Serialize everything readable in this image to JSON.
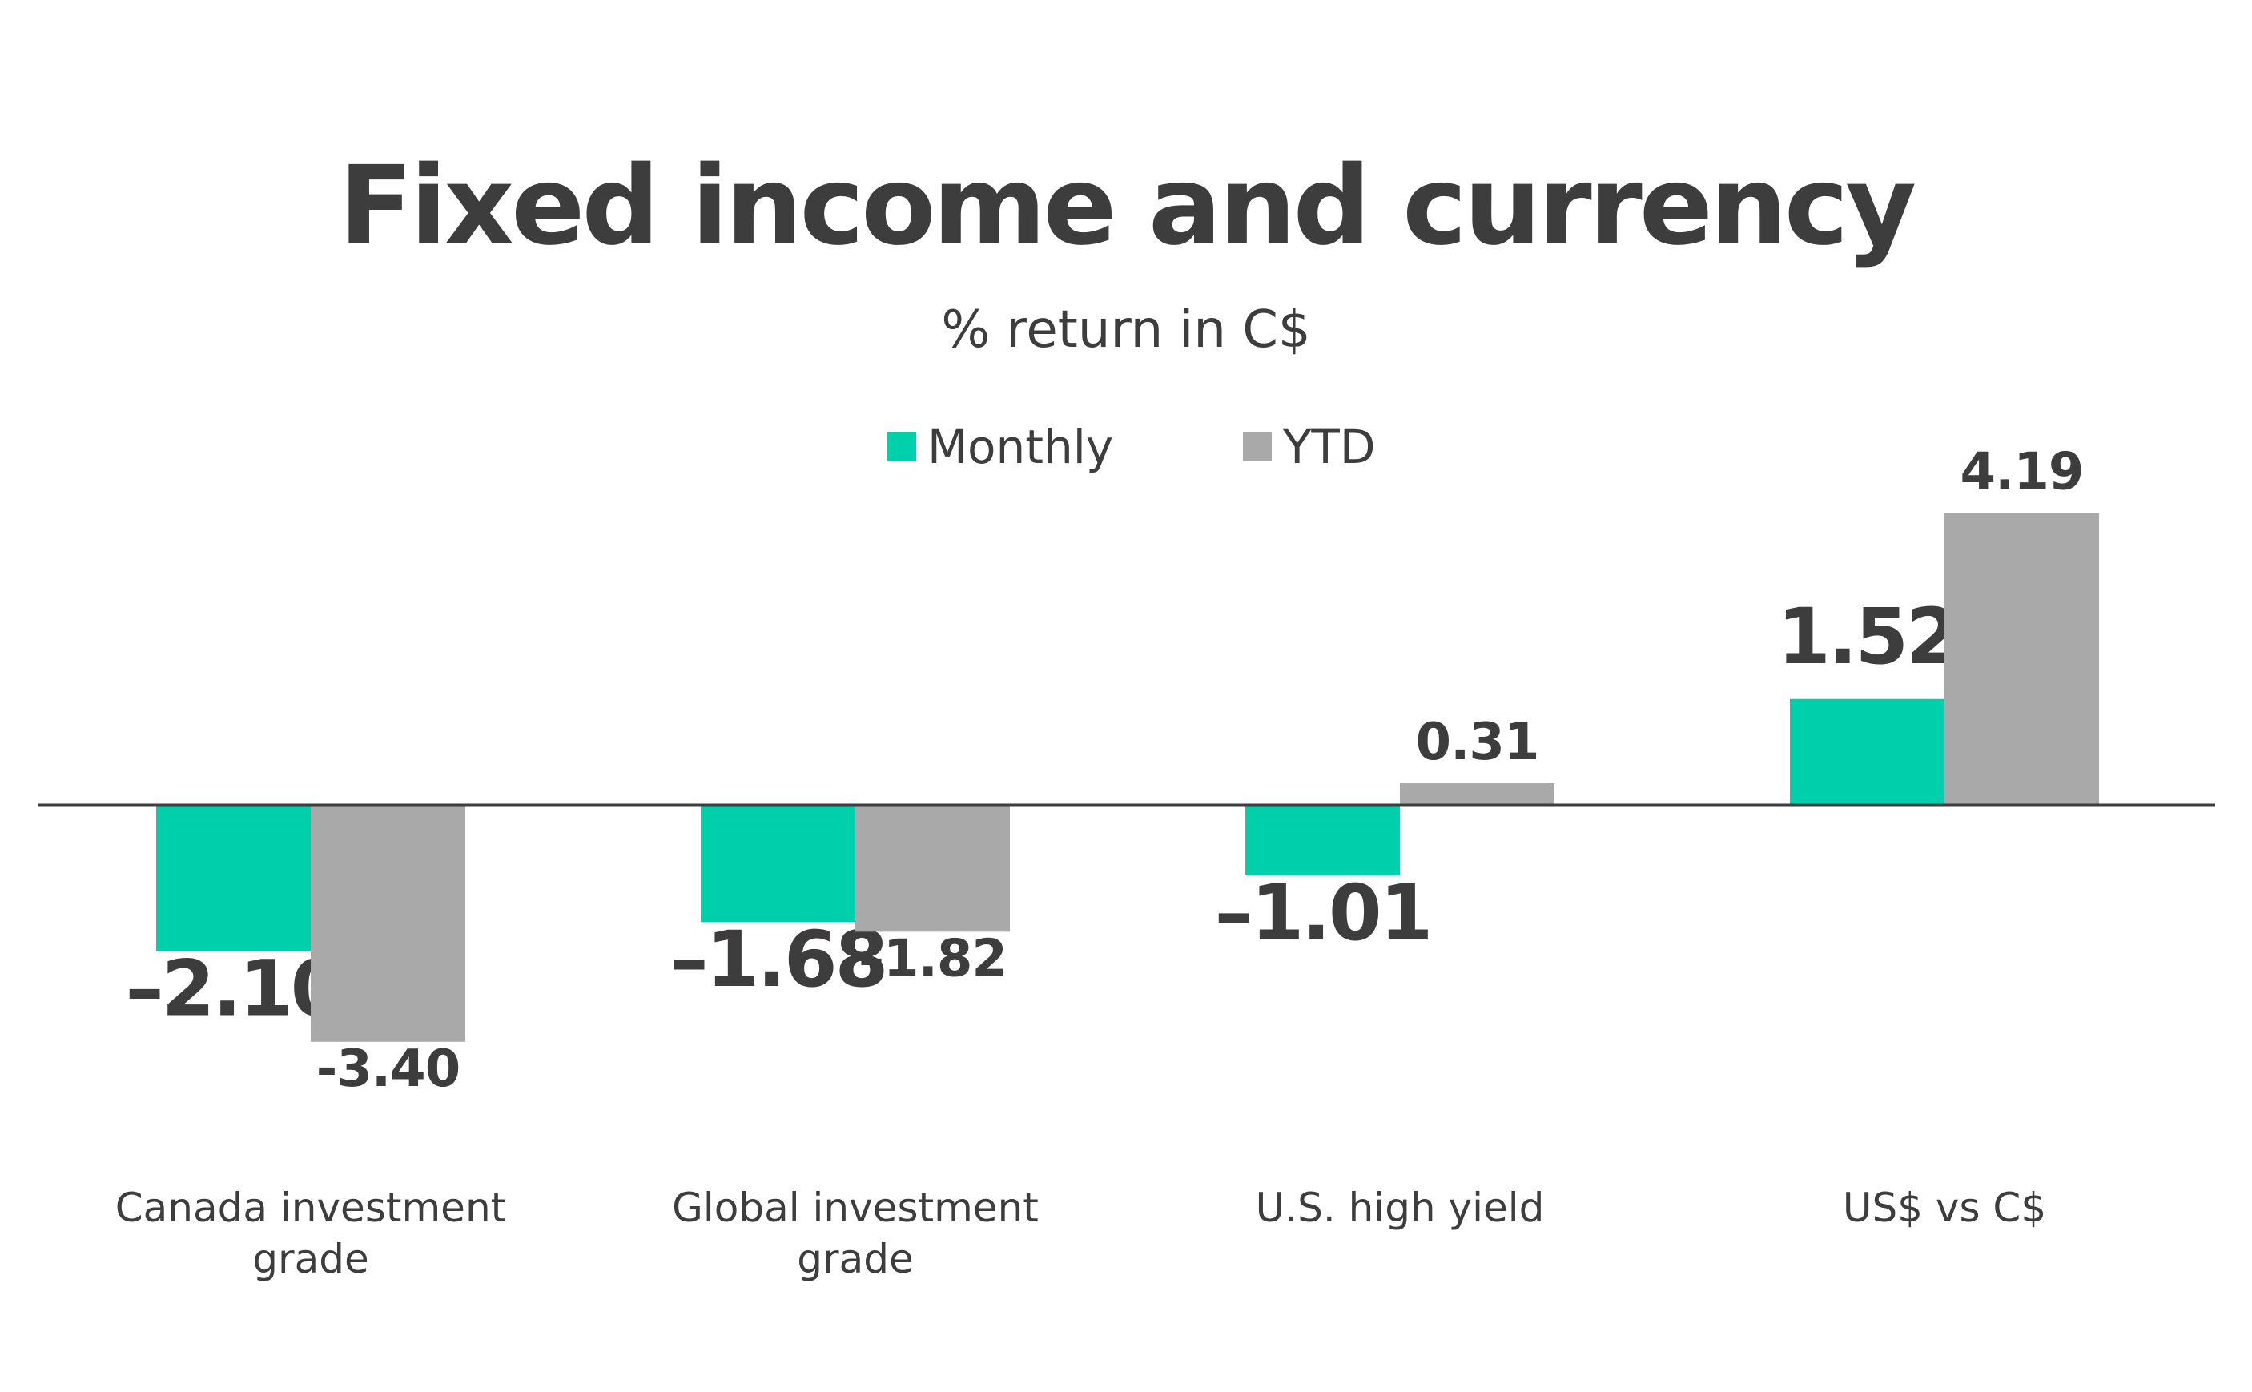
{
  "chart_data": {
    "type": "bar",
    "title": "Fixed income and currency",
    "subtitle": "% return in C$",
    "categories": [
      "Canada investment grade",
      "Global investment grade",
      "U.S. high yield",
      "US$ vs C$"
    ],
    "series": [
      {
        "name": "Monthly",
        "values": [
          -2.1,
          -1.68,
          -1.01,
          1.52
        ],
        "labels": [
          "–2.10",
          "–1.68",
          "–1.01",
          "1.52"
        ],
        "color": "#00cfac"
      },
      {
        "name": "YTD",
        "values": [
          -3.4,
          -1.82,
          0.31,
          4.19
        ],
        "labels": [
          "-3.40",
          "–1.82",
          "0.31",
          "4.19"
        ],
        "color": "#a9a9a9"
      }
    ],
    "xlabel": "",
    "ylabel": "",
    "grid": false,
    "legend_position": "top-center",
    "baseline_color": "#3d3d3d"
  }
}
